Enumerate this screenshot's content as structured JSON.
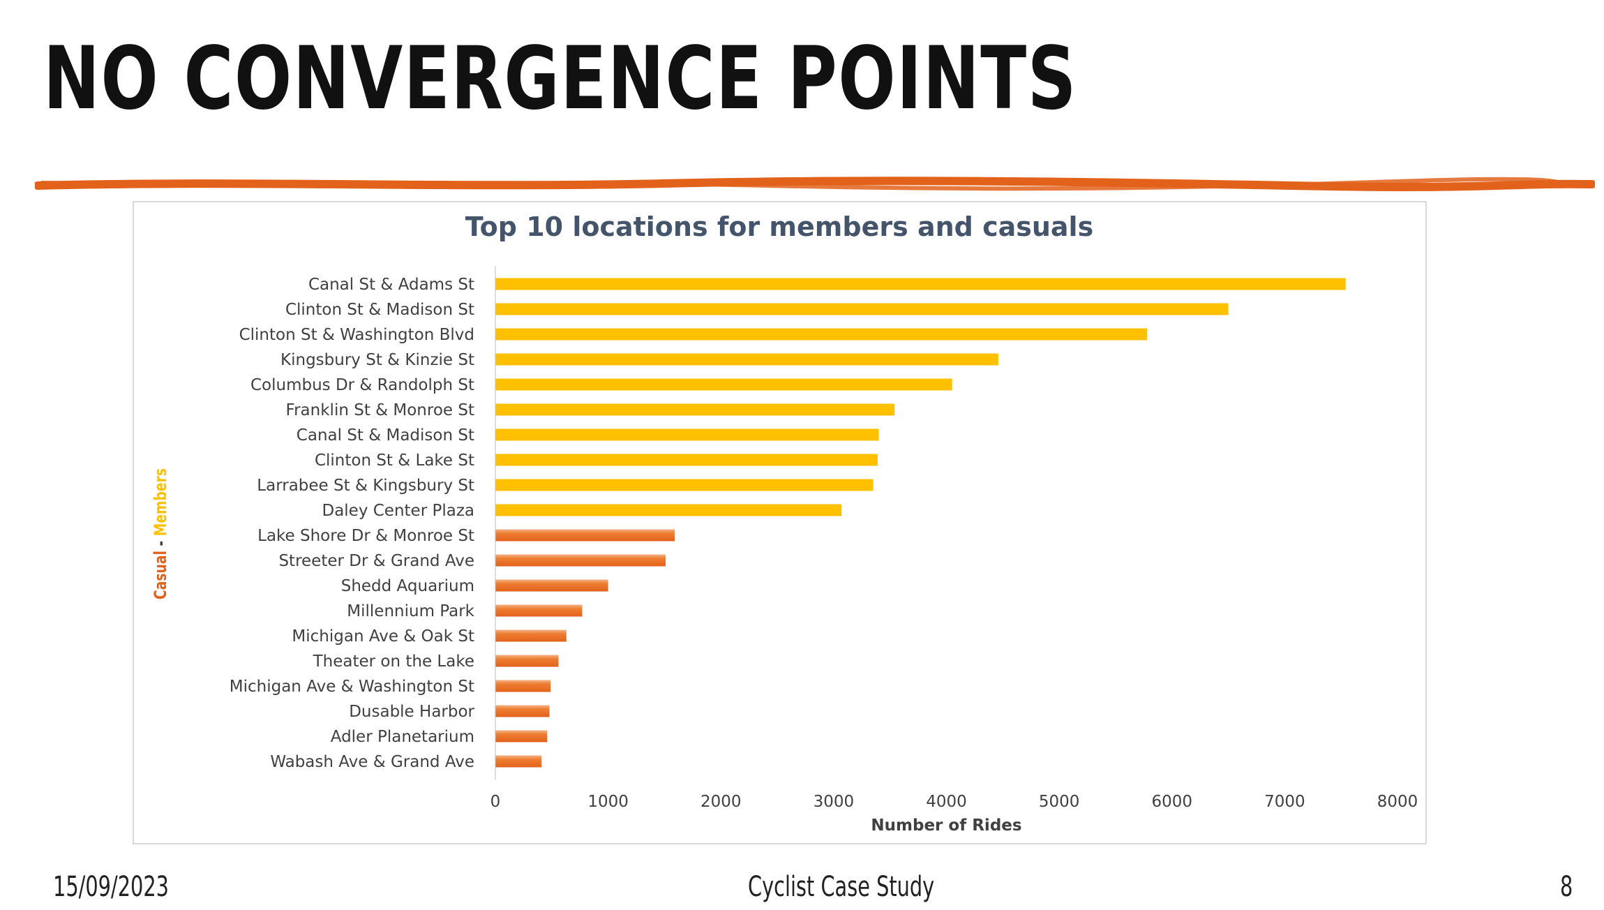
{
  "slide": {
    "title": "NO CONVERGENCE POINTS",
    "footer_date": "15/09/2023",
    "footer_center": "Cyclist Case Study",
    "page_number": "8"
  },
  "colors": {
    "accent_stroke": "#E2611B",
    "member_bar": "#FFC000",
    "casual_bar": "#ED7D31",
    "text_dark": "#404040",
    "title_text": "#44546A"
  },
  "chart_data": {
    "type": "bar",
    "orientation": "horizontal",
    "title": "Top 10 locations for members and casuals",
    "xlabel": "Number of Rides",
    "ylabel_parts": [
      {
        "text": "Casual",
        "color": "#E2611B"
      },
      {
        "text": " - ",
        "color": "#404040"
      },
      {
        "text": "Members",
        "color": "#FFC000"
      }
    ],
    "xlim": [
      0,
      8000
    ],
    "xticks": [
      0,
      1000,
      2000,
      3000,
      4000,
      5000,
      6000,
      7000,
      8000
    ],
    "grid": false,
    "legend": "none",
    "categories": [
      "Canal St & Adams St",
      "Clinton St & Madison St",
      "Clinton St & Washington Blvd",
      "Kingsbury St & Kinzie St",
      "Columbus Dr & Randolph St",
      "Franklin St & Monroe St",
      "Canal St & Madison St",
      "Clinton St & Lake St",
      "Larrabee St & Kingsbury St",
      "Daley Center Plaza",
      "Lake Shore Dr & Monroe St",
      "Streeter Dr & Grand Ave",
      "Shedd Aquarium",
      "Millennium Park",
      "Michigan Ave & Oak St",
      "Theater on the Lake",
      "Michigan Ave & Washington St",
      "Dusable Harbor",
      "Adler Planetarium",
      "Wabash Ave & Grand Ave"
    ],
    "values": [
      7540,
      6500,
      5780,
      4460,
      4050,
      3540,
      3400,
      3390,
      3350,
      3070,
      1590,
      1510,
      1000,
      770,
      630,
      560,
      490,
      480,
      460,
      410
    ],
    "groups": [
      "member",
      "member",
      "member",
      "member",
      "member",
      "member",
      "member",
      "member",
      "member",
      "member",
      "casual",
      "casual",
      "casual",
      "casual",
      "casual",
      "casual",
      "casual",
      "casual",
      "casual",
      "casual"
    ]
  }
}
